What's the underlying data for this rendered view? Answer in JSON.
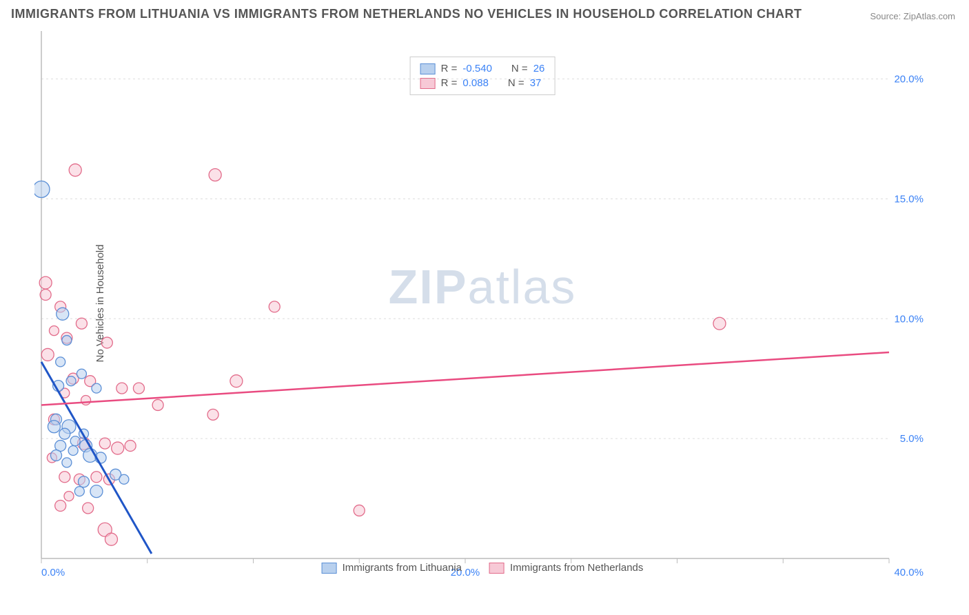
{
  "title": "IMMIGRANTS FROM LITHUANIA VS IMMIGRANTS FROM NETHERLANDS NO VEHICLES IN HOUSEHOLD CORRELATION CHART",
  "source": "Source: ZipAtlas.com",
  "y_axis_label": "No Vehicles in Household",
  "watermark": {
    "prefix": "ZIP",
    "suffix": "atlas"
  },
  "chart": {
    "type": "scatter",
    "background_color": "#ffffff",
    "grid_color": "#dddddd",
    "axis_color": "#bbbbbb",
    "tick_label_color": "#3b82f6",
    "xlim": [
      0,
      40
    ],
    "ylim": [
      0,
      22
    ],
    "x_ticks": [
      0,
      20,
      40
    ],
    "x_tick_labels": [
      "0.0%",
      "20.0%",
      "40.0%"
    ],
    "x_minor_ticks": [
      0,
      5,
      10,
      15,
      20,
      25,
      30,
      35,
      40
    ],
    "y_ticks": [
      5,
      10,
      15,
      20
    ],
    "y_tick_labels": [
      "5.0%",
      "10.0%",
      "15.0%",
      "20.0%"
    ],
    "series": [
      {
        "name": "Immigrants from Lithuania",
        "marker_fill": "#b8d0ee",
        "marker_stroke": "#5b8fd6",
        "marker_opacity": 0.55,
        "line_color": "#2056c7",
        "line_width": 3,
        "regression": {
          "x1": 0,
          "y1": 8.2,
          "x2": 5.2,
          "y2": 0.2
        },
        "stats": {
          "R": "-0.540",
          "N": "26"
        },
        "points": [
          {
            "x": 0.0,
            "y": 15.4,
            "r": 12
          },
          {
            "x": 1.0,
            "y": 10.2,
            "r": 9
          },
          {
            "x": 0.7,
            "y": 5.8,
            "r": 8
          },
          {
            "x": 1.3,
            "y": 5.5,
            "r": 10
          },
          {
            "x": 0.6,
            "y": 5.5,
            "r": 9
          },
          {
            "x": 1.1,
            "y": 5.2,
            "r": 8
          },
          {
            "x": 2.0,
            "y": 5.2,
            "r": 7
          },
          {
            "x": 1.6,
            "y": 4.9,
            "r": 7
          },
          {
            "x": 0.9,
            "y": 4.7,
            "r": 8
          },
          {
            "x": 2.1,
            "y": 4.7,
            "r": 9
          },
          {
            "x": 1.5,
            "y": 4.5,
            "r": 7
          },
          {
            "x": 2.3,
            "y": 4.3,
            "r": 10
          },
          {
            "x": 0.7,
            "y": 4.3,
            "r": 8
          },
          {
            "x": 2.8,
            "y": 4.2,
            "r": 8
          },
          {
            "x": 1.2,
            "y": 4.0,
            "r": 7
          },
          {
            "x": 3.5,
            "y": 3.5,
            "r": 8
          },
          {
            "x": 3.9,
            "y": 3.3,
            "r": 7
          },
          {
            "x": 2.0,
            "y": 3.2,
            "r": 8
          },
          {
            "x": 2.6,
            "y": 2.8,
            "r": 9
          },
          {
            "x": 1.8,
            "y": 2.8,
            "r": 7
          },
          {
            "x": 0.8,
            "y": 7.2,
            "r": 8
          },
          {
            "x": 1.4,
            "y": 7.4,
            "r": 7
          },
          {
            "x": 1.9,
            "y": 7.7,
            "r": 7
          },
          {
            "x": 2.6,
            "y": 7.1,
            "r": 7
          },
          {
            "x": 1.2,
            "y": 9.1,
            "r": 7
          },
          {
            "x": 0.9,
            "y": 8.2,
            "r": 7
          }
        ]
      },
      {
        "name": "Immigrants from Netherlands",
        "marker_fill": "#f7c9d6",
        "marker_stroke": "#e26b8a",
        "marker_opacity": 0.55,
        "line_color": "#e94b80",
        "line_width": 2.5,
        "regression": {
          "x1": 0,
          "y1": 6.4,
          "x2": 40,
          "y2": 8.6
        },
        "stats": {
          "R": "0.088",
          "N": "37"
        },
        "points": [
          {
            "x": 0.2,
            "y": 11.5,
            "r": 9
          },
          {
            "x": 0.2,
            "y": 11.0,
            "r": 8
          },
          {
            "x": 1.6,
            "y": 16.2,
            "r": 9
          },
          {
            "x": 8.2,
            "y": 16.0,
            "r": 9
          },
          {
            "x": 0.9,
            "y": 10.5,
            "r": 8
          },
          {
            "x": 1.9,
            "y": 9.8,
            "r": 8
          },
          {
            "x": 1.2,
            "y": 9.2,
            "r": 8
          },
          {
            "x": 3.1,
            "y": 9.0,
            "r": 8
          },
          {
            "x": 0.3,
            "y": 8.5,
            "r": 9
          },
          {
            "x": 1.5,
            "y": 7.5,
            "r": 8
          },
          {
            "x": 2.3,
            "y": 7.4,
            "r": 8
          },
          {
            "x": 3.8,
            "y": 7.1,
            "r": 8
          },
          {
            "x": 4.6,
            "y": 7.1,
            "r": 8
          },
          {
            "x": 5.5,
            "y": 6.4,
            "r": 8
          },
          {
            "x": 9.2,
            "y": 7.4,
            "r": 9
          },
          {
            "x": 11.0,
            "y": 10.5,
            "r": 8
          },
          {
            "x": 32.0,
            "y": 9.8,
            "r": 9
          },
          {
            "x": 8.1,
            "y": 6.0,
            "r": 8
          },
          {
            "x": 0.6,
            "y": 5.8,
            "r": 8
          },
          {
            "x": 2.0,
            "y": 4.8,
            "r": 9
          },
          {
            "x": 3.0,
            "y": 4.8,
            "r": 8
          },
          {
            "x": 3.6,
            "y": 4.6,
            "r": 9
          },
          {
            "x": 4.2,
            "y": 4.7,
            "r": 8
          },
          {
            "x": 1.1,
            "y": 3.4,
            "r": 8
          },
          {
            "x": 2.6,
            "y": 3.4,
            "r": 8
          },
          {
            "x": 1.8,
            "y": 3.3,
            "r": 8
          },
          {
            "x": 3.2,
            "y": 3.3,
            "r": 8
          },
          {
            "x": 0.9,
            "y": 2.2,
            "r": 8
          },
          {
            "x": 2.2,
            "y": 2.1,
            "r": 8
          },
          {
            "x": 3.0,
            "y": 1.2,
            "r": 10
          },
          {
            "x": 3.3,
            "y": 0.8,
            "r": 9
          },
          {
            "x": 15.0,
            "y": 2.0,
            "r": 8
          },
          {
            "x": 1.1,
            "y": 6.9,
            "r": 7
          },
          {
            "x": 2.1,
            "y": 6.6,
            "r": 7
          },
          {
            "x": 0.5,
            "y": 4.2,
            "r": 7
          },
          {
            "x": 1.3,
            "y": 2.6,
            "r": 7
          },
          {
            "x": 0.6,
            "y": 9.5,
            "r": 7
          }
        ]
      }
    ]
  },
  "legend_bottom": [
    {
      "color_fill": "#b8d0ee",
      "color_stroke": "#5b8fd6",
      "label": "Immigrants from Lithuania"
    },
    {
      "color_fill": "#f7c9d6",
      "color_stroke": "#e26b8a",
      "label": "Immigrants from Netherlands"
    }
  ]
}
